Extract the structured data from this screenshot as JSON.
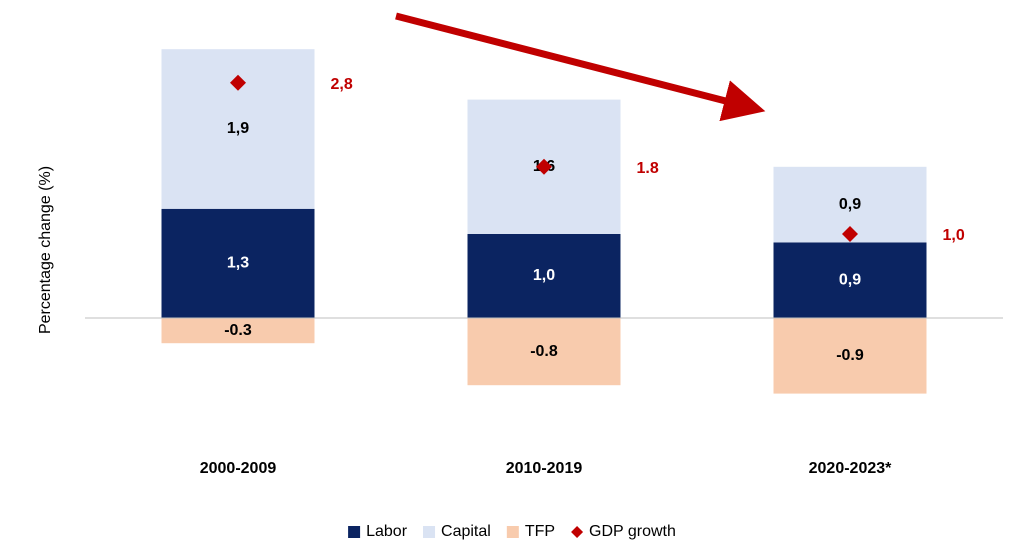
{
  "chart_data": {
    "type": "bar",
    "stacked": true,
    "y_label": "Percentage change (%)",
    "categories": [
      "2000-2009",
      "2010-2019",
      "2020-2023*"
    ],
    "series": [
      {
        "name": "Labor",
        "color": "#0b2461",
        "values": [
          1.3,
          1.0,
          0.9
        ],
        "value_labels": [
          "1,3",
          "1,0",
          "0,9"
        ]
      },
      {
        "name": "Capital",
        "color": "#dae3f3",
        "values": [
          1.9,
          1.6,
          0.9
        ],
        "value_labels": [
          "1,9",
          "1,6",
          "0,9"
        ]
      },
      {
        "name": "TFP",
        "color": "#f8cbad",
        "values": [
          -0.3,
          -0.8,
          -0.9
        ]
      },
      {
        "name": "GDP growth",
        "color": "#c00000",
        "type": "scatter",
        "values": [
          2.8,
          1.8,
          1.0
        ],
        "value_labels": [
          "2,8",
          "1.8",
          "1,0"
        ]
      }
    ],
    "ylim": [
      -1.5,
      3.5
    ],
    "legend": "bottom"
  }
}
